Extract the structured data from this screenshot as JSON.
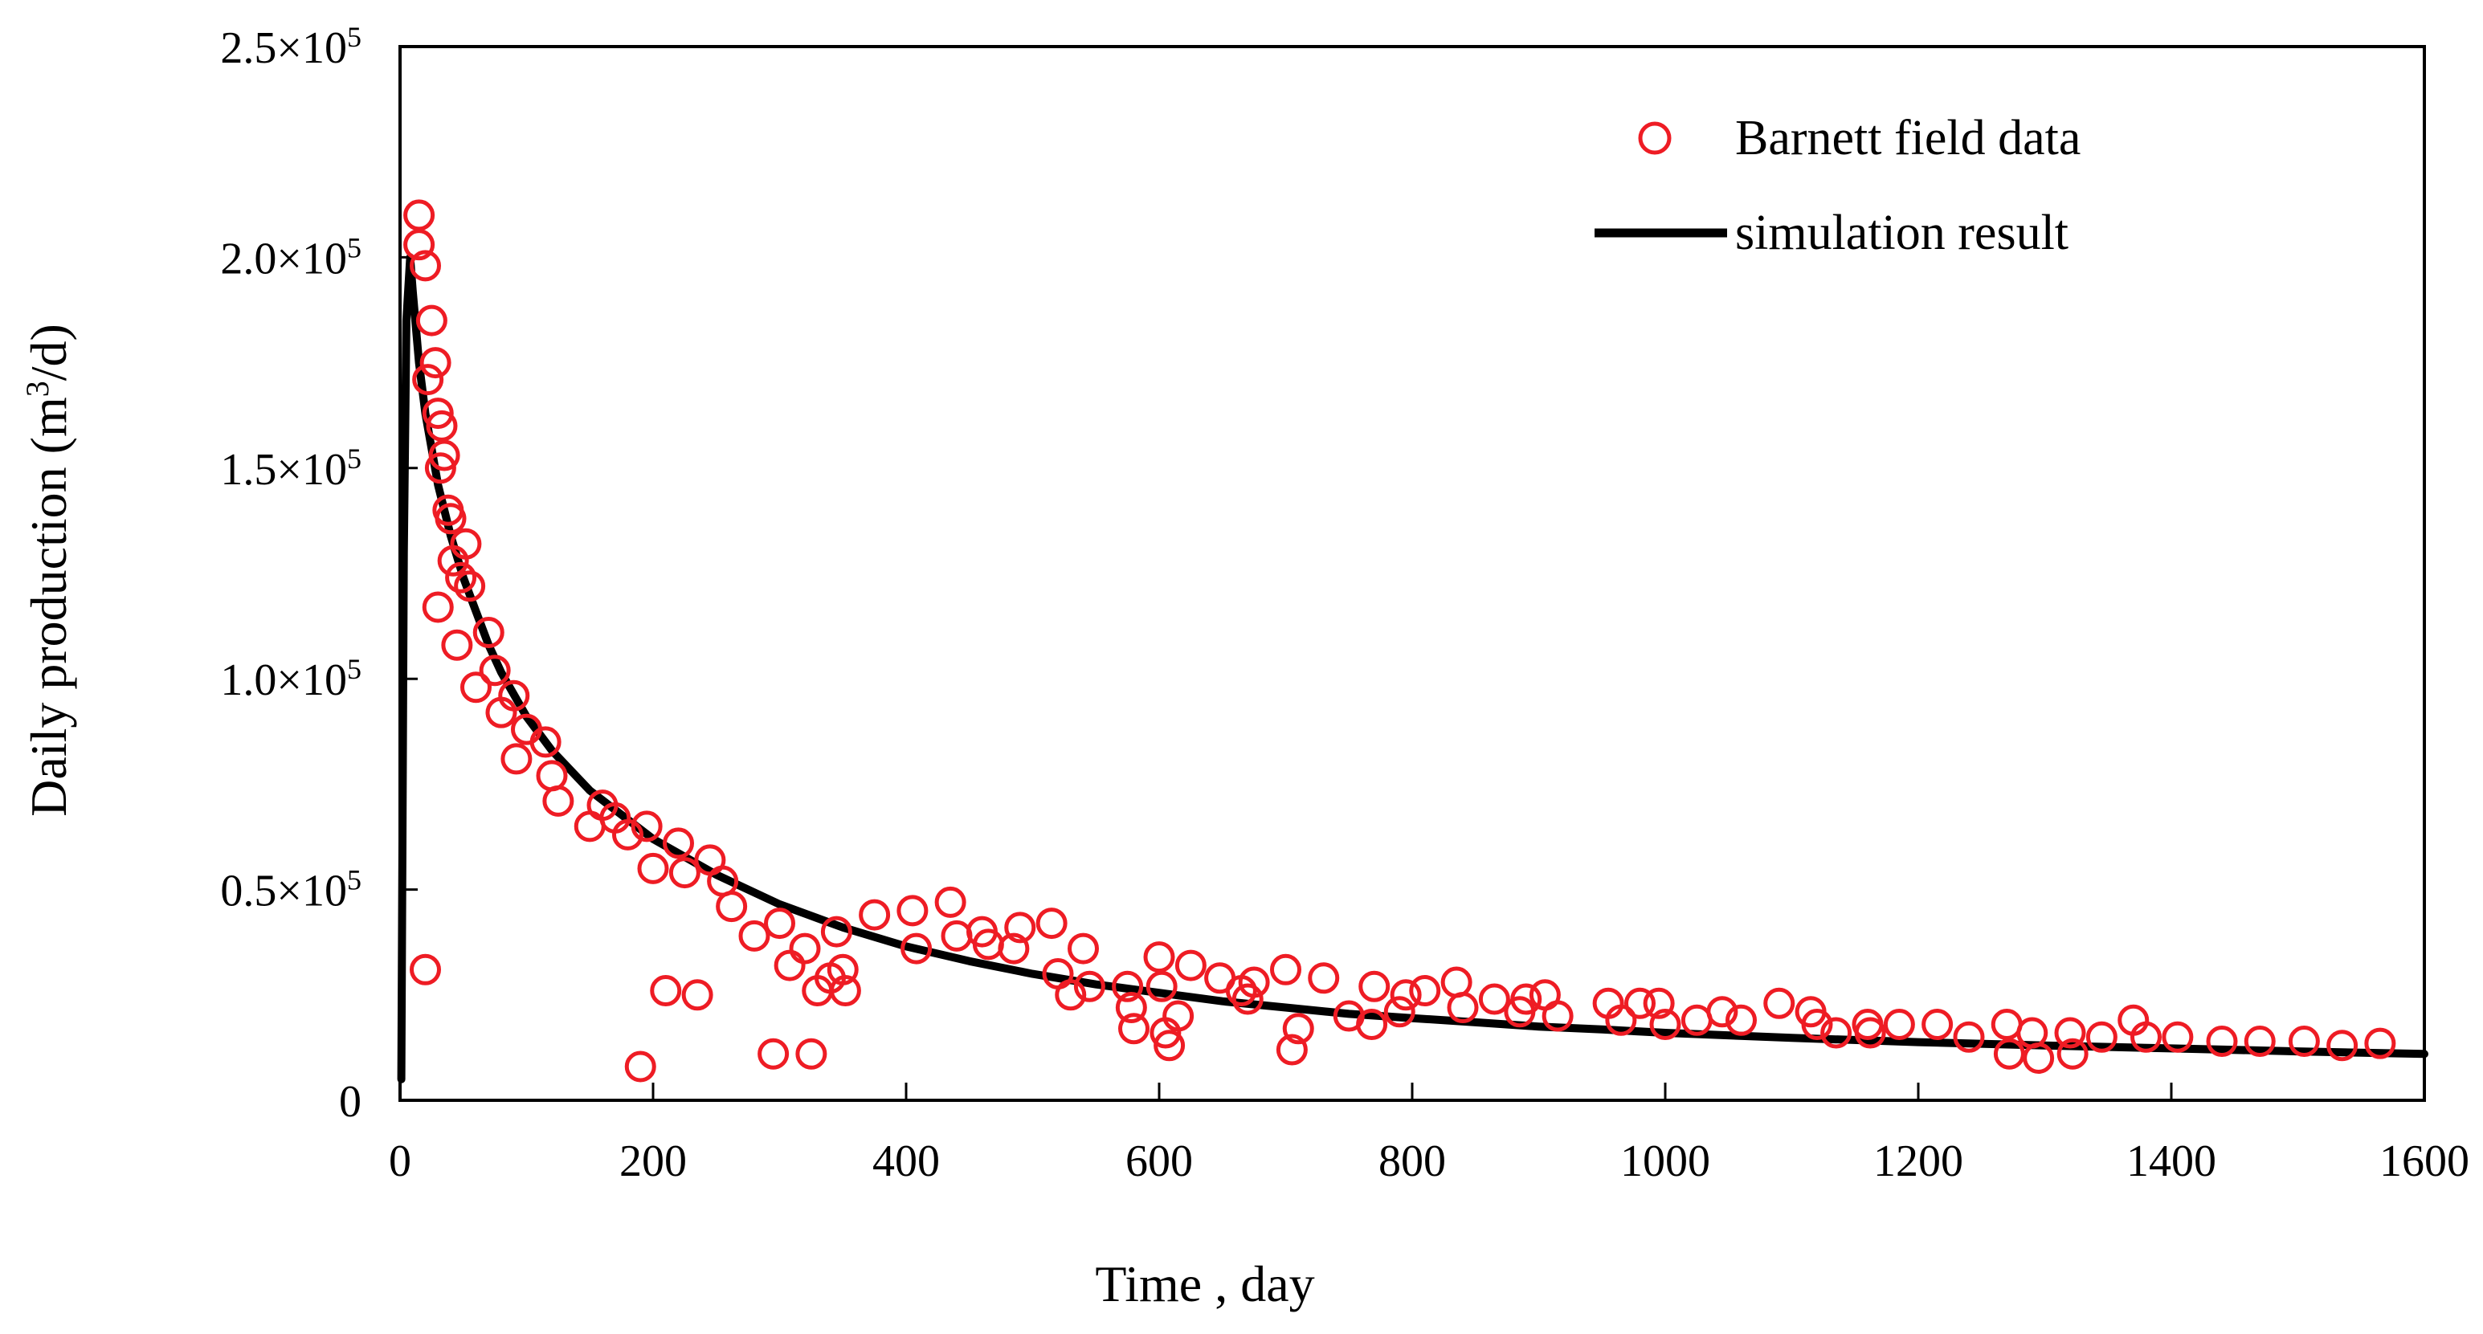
{
  "chart_data": {
    "type": "scatter",
    "xlabel": "Time , day",
    "ylabel_main": "Daily production (m",
    "ylabel_sup": "3",
    "ylabel_tail": "/d)",
    "xlim": [
      0,
      1600
    ],
    "ylim": [
      0,
      250000
    ],
    "x_ticks": [
      0,
      200,
      400,
      600,
      800,
      1000,
      1200,
      1400,
      1600
    ],
    "y_ticks": [
      {
        "value": 0,
        "mant": "0",
        "exp": ""
      },
      {
        "value": 50000,
        "mant": "0.5×10",
        "exp": "5"
      },
      {
        "value": 100000,
        "mant": "1.0×10",
        "exp": "5"
      },
      {
        "value": 150000,
        "mant": "1.5×10",
        "exp": "5"
      },
      {
        "value": 200000,
        "mant": "2.0×10",
        "exp": "5"
      },
      {
        "value": 250000,
        "mant": "2.5×10",
        "exp": "5"
      }
    ],
    "grid": false,
    "legend_position": "top-right",
    "colors": {
      "field": "#ee1c24",
      "simulation": "#000000"
    },
    "series": [
      {
        "name": "Barnett field data",
        "mark": "open-circle",
        "points": [
          [
            15,
            210000
          ],
          [
            15,
            203000
          ],
          [
            20,
            198000
          ],
          [
            22,
            171000
          ],
          [
            25,
            185000
          ],
          [
            28,
            175000
          ],
          [
            30,
            163000
          ],
          [
            32,
            150000
          ],
          [
            30,
            117000
          ],
          [
            33,
            160000
          ],
          [
            35,
            153000
          ],
          [
            38,
            140000
          ],
          [
            40,
            138000
          ],
          [
            42,
            128000
          ],
          [
            45,
            108000
          ],
          [
            48,
            124000
          ],
          [
            52,
            132000
          ],
          [
            55,
            122000
          ],
          [
            60,
            98000
          ],
          [
            70,
            111000
          ],
          [
            75,
            102000
          ],
          [
            80,
            92000
          ],
          [
            90,
            96000
          ],
          [
            92,
            81000
          ],
          [
            100,
            88000
          ],
          [
            115,
            85000
          ],
          [
            120,
            77000
          ],
          [
            125,
            71000
          ],
          [
            150,
            65000
          ],
          [
            160,
            70000
          ],
          [
            170,
            67000
          ],
          [
            180,
            63000
          ],
          [
            195,
            65000
          ],
          [
            200,
            55000
          ],
          [
            220,
            61000
          ],
          [
            225,
            54000
          ],
          [
            245,
            57000
          ],
          [
            255,
            52000
          ],
          [
            262,
            46000
          ],
          [
            280,
            39000
          ],
          [
            300,
            42000
          ],
          [
            308,
            32000
          ],
          [
            320,
            36000
          ],
          [
            330,
            26000
          ],
          [
            340,
            29000
          ],
          [
            345,
            40000
          ],
          [
            350,
            31000
          ],
          [
            352,
            26000
          ],
          [
            375,
            44000
          ],
          [
            405,
            45000
          ],
          [
            408,
            36000
          ],
          [
            435,
            47000
          ],
          [
            440,
            39000
          ],
          [
            460,
            40000
          ],
          [
            465,
            37000
          ],
          [
            485,
            36000
          ],
          [
            490,
            41000
          ],
          [
            515,
            42000
          ],
          [
            520,
            30000
          ],
          [
            530,
            25000
          ],
          [
            540,
            36000
          ],
          [
            545,
            27000
          ],
          [
            575,
            27000
          ],
          [
            578,
            22000
          ],
          [
            580,
            17000
          ],
          [
            600,
            34000
          ],
          [
            602,
            27000
          ],
          [
            605,
            16000
          ],
          [
            608,
            13000
          ],
          [
            615,
            20000
          ],
          [
            625,
            32000
          ],
          [
            648,
            29000
          ],
          [
            665,
            26000
          ],
          [
            670,
            24000
          ],
          [
            675,
            28000
          ],
          [
            700,
            31000
          ],
          [
            705,
            12000
          ],
          [
            710,
            17000
          ],
          [
            730,
            29000
          ],
          [
            750,
            20000
          ],
          [
            768,
            18000
          ],
          [
            770,
            27000
          ],
          [
            790,
            21000
          ],
          [
            795,
            25000
          ],
          [
            810,
            26000
          ],
          [
            835,
            28000
          ],
          [
            840,
            22000
          ],
          [
            865,
            24000
          ],
          [
            885,
            21000
          ],
          [
            890,
            24000
          ],
          [
            905,
            25000
          ],
          [
            915,
            20000
          ],
          [
            955,
            23000
          ],
          [
            965,
            19000
          ],
          [
            980,
            23000
          ],
          [
            995,
            23000
          ],
          [
            1000,
            18000
          ],
          [
            1025,
            19000
          ],
          [
            1045,
            21000
          ],
          [
            1060,
            19000
          ],
          [
            1090,
            23000
          ],
          [
            1115,
            21000
          ],
          [
            1120,
            18000
          ],
          [
            1135,
            16000
          ],
          [
            1160,
            18000
          ],
          [
            1162,
            16000
          ],
          [
            1185,
            18000
          ],
          [
            1215,
            18000
          ],
          [
            1240,
            15000
          ],
          [
            1270,
            18000
          ],
          [
            1272,
            11000
          ],
          [
            1290,
            16000
          ],
          [
            1295,
            10000
          ],
          [
            1320,
            16000
          ],
          [
            1322,
            11000
          ],
          [
            1345,
            15000
          ],
          [
            1370,
            19000
          ],
          [
            1380,
            15000
          ],
          [
            1405,
            15000
          ],
          [
            1440,
            14000
          ],
          [
            1470,
            14000
          ],
          [
            1505,
            14000
          ],
          [
            1535,
            13000
          ],
          [
            1565,
            13500
          ],
          [
            20,
            31000
          ],
          [
            190,
            8000
          ],
          [
            210,
            26000
          ],
          [
            235,
            25000
          ],
          [
            295,
            11000
          ],
          [
            325,
            11000
          ]
        ]
      },
      {
        "name": "simulation result",
        "mark": "line",
        "points": [
          [
            1,
            5000
          ],
          [
            3,
            130000
          ],
          [
            5,
            185000
          ],
          [
            8,
            200000
          ],
          [
            10,
            192000
          ],
          [
            15,
            175000
          ],
          [
            20,
            163000
          ],
          [
            30,
            146000
          ],
          [
            40,
            134000
          ],
          [
            50,
            124000
          ],
          [
            60,
            116000
          ],
          [
            70,
            108000
          ],
          [
            80,
            101500
          ],
          [
            100,
            91000
          ],
          [
            120,
            83000
          ],
          [
            150,
            73500
          ],
          [
            200,
            62000
          ],
          [
            250,
            53500
          ],
          [
            300,
            46500
          ],
          [
            350,
            41000
          ],
          [
            400,
            36500
          ],
          [
            450,
            33000
          ],
          [
            500,
            30000
          ],
          [
            550,
            27500
          ],
          [
            600,
            25500
          ],
          [
            650,
            23500
          ],
          [
            700,
            22000
          ],
          [
            750,
            20500
          ],
          [
            800,
            19500
          ],
          [
            850,
            18500
          ],
          [
            900,
            17500
          ],
          [
            950,
            16800
          ],
          [
            1000,
            16000
          ],
          [
            1100,
            14800
          ],
          [
            1200,
            13800
          ],
          [
            1300,
            13000
          ],
          [
            1400,
            12300
          ],
          [
            1500,
            11600
          ],
          [
            1600,
            11000
          ]
        ]
      }
    ]
  }
}
